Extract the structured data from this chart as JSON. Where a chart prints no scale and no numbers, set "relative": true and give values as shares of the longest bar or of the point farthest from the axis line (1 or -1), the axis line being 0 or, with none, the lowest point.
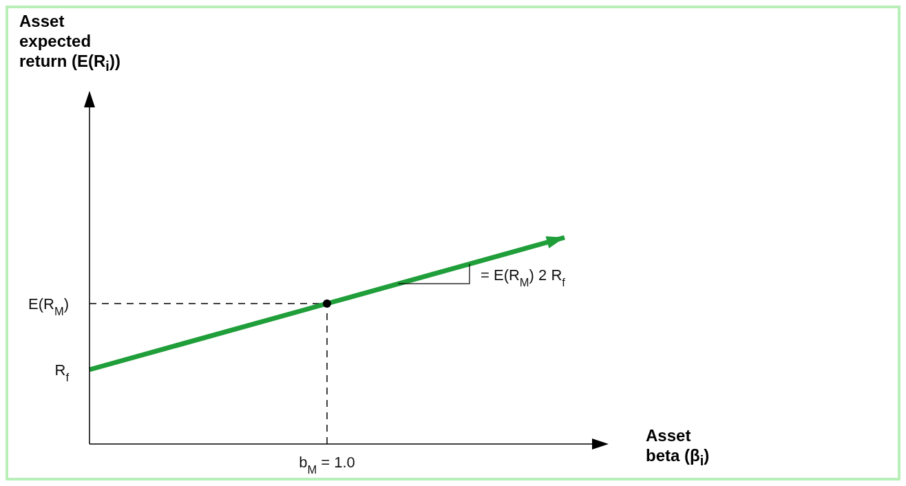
{
  "chart_data": {
    "type": "line",
    "relative": true,
    "xlabel": "Asset beta (β$_{i}$)",
    "categories": [
      null,
      null,
      null
    ],
    "series": [
      {
        "values": [
          0.36,
          0.68,
          1
        ],
        "color": "#1f9e3a"
      }
    ],
    "ref_lines": [
      {
        "axis": "y",
        "value": 0.68,
        "label": "E(R$_{M}$)",
        "color": "#000000",
        "line_style": "dashed"
      }
    ],
    "annotations": [
      "Asset expected return (E(R$_{i}$))",
      "R$_{f}$",
      "= E(R$_{M}$) 2 R$_{f}$",
      "b$_{M}$ = 1.0"
    ]
  }
}
